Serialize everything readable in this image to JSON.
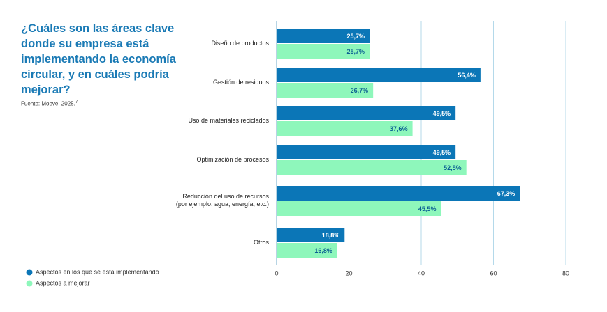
{
  "chart_data": {
    "type": "bar",
    "orientation": "horizontal",
    "title": "¿Cuáles son las áreas clave donde su empresa está implementando la economía circular, y en cuáles podría mejorar?",
    "source": "Fuente: Moeve, 2025.",
    "source_note": "7",
    "categories": [
      "Diseño de productos",
      "Gestión de residuos",
      "Uso de materiales reciclados",
      "Optimización de procesos",
      "Reducción del uso de recursos\n(por ejemplo: agua, energía, etc.)",
      "Otros"
    ],
    "series": [
      {
        "name": "Aspectos en los que se está implementando",
        "color": "#0b76b7",
        "label_color": "#ffffff",
        "values": [
          25.7,
          56.4,
          49.5,
          49.5,
          67.3,
          18.8
        ],
        "value_labels": [
          "25,7%",
          "56,4%",
          "49,5%",
          "49,5%",
          "67,3%",
          "18,8%"
        ]
      },
      {
        "name": "Aspectos a mejorar",
        "color": "#8ef7bb",
        "label_color": "#0b5f93",
        "values": [
          25.7,
          26.7,
          37.6,
          52.5,
          45.5,
          16.8
        ],
        "value_labels": [
          "25,7%",
          "26,7%",
          "37,6%",
          "52,5%",
          "45,5%",
          "16,8%"
        ]
      }
    ],
    "xlim": [
      0,
      80
    ],
    "xticks": [
      0,
      20,
      40,
      60,
      80
    ],
    "grid": true
  }
}
